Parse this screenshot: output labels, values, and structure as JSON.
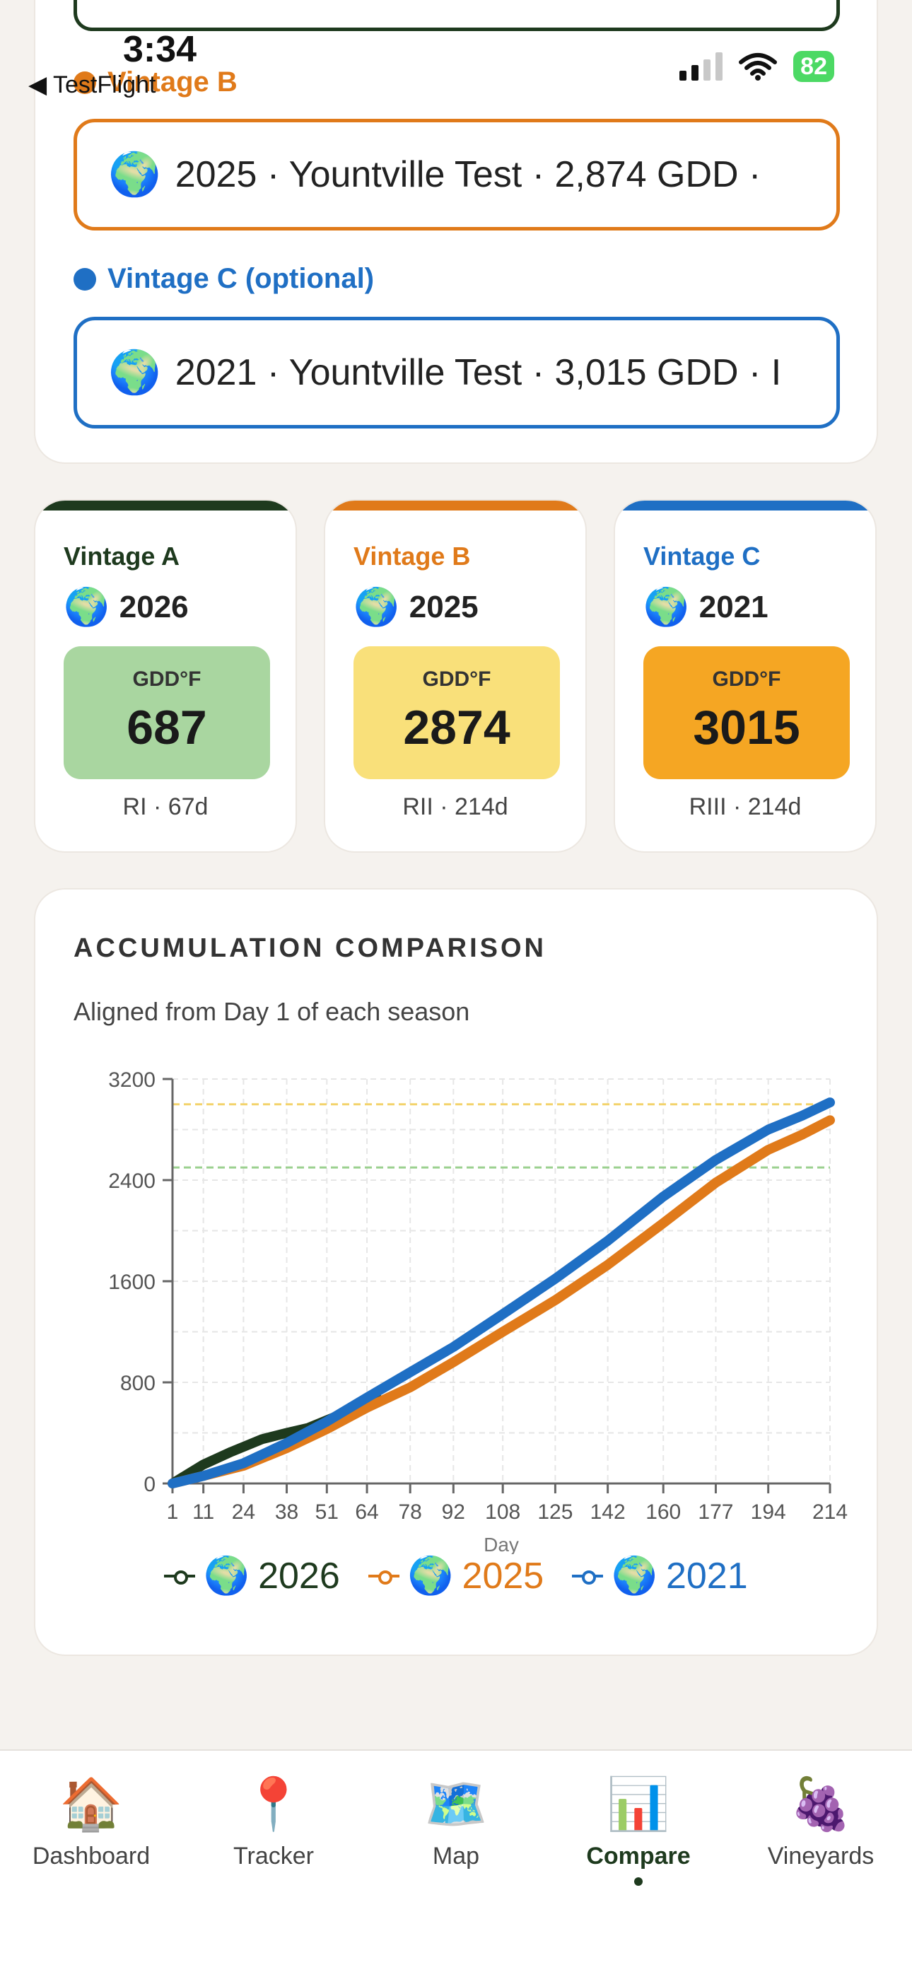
{
  "status": {
    "time": "3:34",
    "back": "◀ TestFlight",
    "battery": "82"
  },
  "selectors": {
    "b": {
      "label": "Vintage B",
      "value": "2025 · Yountville Test · 2,874 GDD ·",
      "icon": "globe-icon"
    },
    "c": {
      "label": "Vintage C (optional)",
      "value": "2021 · Yountville Test · 3,015 GDD · I",
      "icon": "globe-icon"
    }
  },
  "cards": [
    {
      "label": "Vintage A",
      "year": "2026",
      "unit": "GDD°F",
      "gdd": "687",
      "meta": "RI · 67d",
      "color": "#1e3a1e",
      "bg": "#a9d6a0"
    },
    {
      "label": "Vintage B",
      "year": "2025",
      "unit": "GDD°F",
      "gdd": "2874",
      "meta": "RII · 214d",
      "color": "#e07a1a",
      "bg": "#f9e07a"
    },
    {
      "label": "Vintage C",
      "year": "2021",
      "unit": "GDD°F",
      "gdd": "3015",
      "meta": "RIII · 214d",
      "color": "#1f6fc4",
      "bg": "#f5a623"
    }
  ],
  "chart": {
    "title": "ACCUMULATION COMPARISON",
    "subtitle": "Aligned from Day 1 of each season"
  },
  "chart_data": {
    "type": "line",
    "xlabel": "Day",
    "ylabel": "",
    "x_ticks": [
      1,
      11,
      24,
      38,
      51,
      64,
      78,
      92,
      108,
      125,
      142,
      160,
      177,
      194,
      214
    ],
    "y_ticks": [
      0,
      800,
      1600,
      2400,
      3200
    ],
    "xlim": [
      1,
      214
    ],
    "ylim": [
      0,
      3200
    ],
    "grid": true,
    "reference_lines": [
      {
        "y": 3000,
        "color": "#f3d36b"
      },
      {
        "y": 2500,
        "color": "#9bd08f"
      }
    ],
    "series": [
      {
        "name": "2026",
        "color": "#1e3a1e",
        "x": [
          1,
          11,
          20,
          30,
          38,
          45,
          51,
          58,
          64,
          67
        ],
        "y": [
          0,
          150,
          250,
          350,
          400,
          440,
          500,
          570,
          650,
          687
        ]
      },
      {
        "name": "2025",
        "color": "#e07a1a",
        "x": [
          1,
          11,
          24,
          38,
          51,
          64,
          78,
          92,
          108,
          125,
          142,
          160,
          177,
          194,
          205,
          214
        ],
        "y": [
          0,
          60,
          140,
          280,
          430,
          600,
          760,
          960,
          1200,
          1450,
          1730,
          2060,
          2380,
          2640,
          2760,
          2874
        ]
      },
      {
        "name": "2021",
        "color": "#1f6fc4",
        "x": [
          1,
          11,
          24,
          38,
          51,
          64,
          78,
          92,
          108,
          125,
          142,
          160,
          177,
          194,
          205,
          214
        ],
        "y": [
          0,
          60,
          160,
          320,
          490,
          680,
          880,
          1080,
          1340,
          1620,
          1920,
          2270,
          2560,
          2800,
          2910,
          3015
        ]
      }
    ]
  },
  "legend": [
    {
      "name": "2026",
      "color": "#1e3a1e"
    },
    {
      "name": "2025",
      "color": "#e07a1a"
    },
    {
      "name": "2021",
      "color": "#1f6fc4"
    }
  ],
  "tabs": [
    {
      "label": "Dashboard",
      "icon": "house-icon",
      "glyph": "🏠"
    },
    {
      "label": "Tracker",
      "icon": "pin-icon",
      "glyph": "📍"
    },
    {
      "label": "Map",
      "icon": "map-icon",
      "glyph": "🗺️"
    },
    {
      "label": "Compare",
      "icon": "chart-icon",
      "glyph": "📊"
    },
    {
      "label": "Vineyards",
      "icon": "grapes-icon",
      "glyph": "🍇"
    }
  ]
}
